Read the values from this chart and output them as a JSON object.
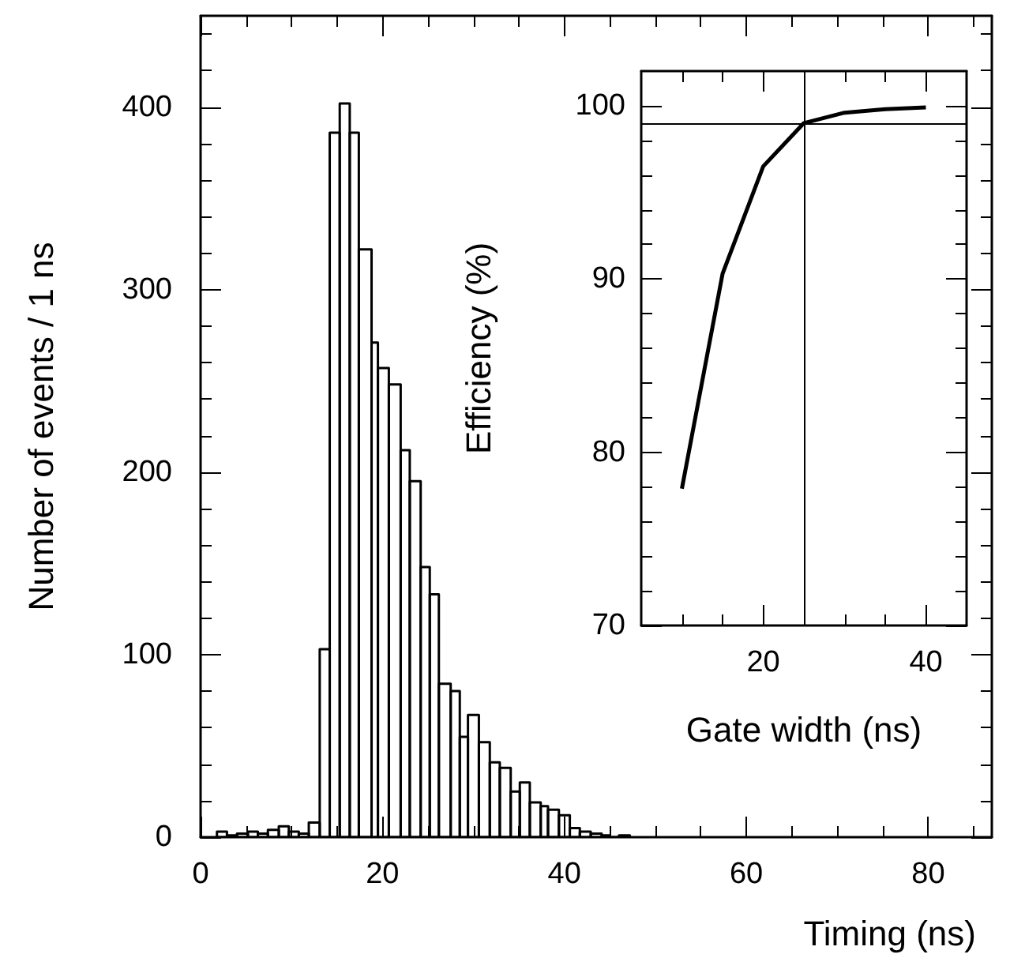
{
  "chart_data": [
    {
      "type": "histogram",
      "xlabel": "Timing (ns)",
      "ylabel": "Number of events / 1 ns",
      "color": "#000000",
      "bins": [
        1.8,
        2.9,
        4.0,
        5.2,
        6.3,
        7.4,
        8.6,
        9.7,
        10.8,
        11.9,
        13.1,
        14.2,
        15.3,
        16.4,
        17.4,
        18.8,
        19.5,
        20.7,
        22.0,
        23.0,
        24.2,
        25.2,
        26.2,
        27.5,
        28.5,
        29.4,
        30.6,
        31.8,
        32.9,
        34.1,
        35.1,
        36.2,
        37.4,
        38.2,
        39.4,
        40.6,
        41.7,
        42.9,
        44.1,
        45.0,
        46.0,
        47.2
      ],
      "values": [
        3,
        1,
        2,
        3,
        2,
        4,
        6,
        3,
        2,
        8,
        103,
        386,
        402,
        386,
        322,
        271,
        257,
        248,
        212,
        195,
        148,
        133,
        84,
        80,
        55,
        67,
        52,
        41,
        38,
        25,
        30,
        19,
        17,
        15,
        12,
        5,
        3,
        2,
        1,
        0,
        1
      ],
      "xlim": [
        0,
        87
      ],
      "xticks": [
        0,
        {
          "value": 5,
          "label": null
        },
        {
          "value": 10,
          "label": null
        },
        {
          "value": 15,
          "label": null
        },
        20,
        {
          "value": 25,
          "label": null
        },
        {
          "value": 30,
          "label": null
        },
        {
          "value": 35,
          "label": null
        },
        40,
        {
          "value": 45,
          "label": null
        },
        {
          "value": 50,
          "label": null
        },
        {
          "value": 55,
          "label": null
        },
        60,
        {
          "value": 65,
          "label": null
        },
        {
          "value": 70,
          "label": null
        },
        {
          "value": 75,
          "label": null
        },
        80,
        {
          "value": 85,
          "label": null
        }
      ],
      "ylim": [
        0,
        450
      ],
      "yticks": [
        0,
        {
          "value": 20,
          "label": null
        },
        {
          "value": 40,
          "label": null
        },
        {
          "value": 60,
          "label": null
        },
        {
          "value": 80,
          "label": null
        },
        100,
        {
          "value": 120,
          "label": null
        },
        {
          "value": 140,
          "label": null
        },
        {
          "value": 160,
          "label": null
        },
        {
          "value": 180,
          "label": null
        },
        200,
        {
          "value": 220,
          "label": null
        },
        {
          "value": 240,
          "label": null
        },
        {
          "value": 260,
          "label": null
        },
        {
          "value": 280,
          "label": null
        },
        300,
        {
          "value": 320,
          "label": null
        },
        {
          "value": 340,
          "label": null
        },
        {
          "value": 360,
          "label": null
        },
        {
          "value": 380,
          "label": null
        },
        400,
        {
          "value": 420,
          "label": null
        },
        {
          "value": 440,
          "label": null
        }
      ]
    },
    {
      "type": "line",
      "xlabel": "Gate width (ns)",
      "ylabel": "Efficiency (%)",
      "marker": "none",
      "series": [
        {
          "color": "#000000",
          "x": [
            10,
            15,
            20,
            25,
            30,
            35,
            40
          ],
          "values": [
            77.9,
            90.3,
            96.5,
            99.0,
            99.6,
            99.8,
            99.9
          ]
        }
      ],
      "xlim": [
        5,
        45
      ],
      "xticks": [
        {
          "value": 10,
          "label": null
        },
        {
          "value": 15,
          "label": null
        },
        20,
        {
          "value": 25,
          "label": null
        },
        {
          "value": 30,
          "label": null
        },
        {
          "value": 35,
          "label": null
        },
        40
      ],
      "ylim": [
        70,
        102
      ],
      "yticks": [
        70,
        {
          "value": 72,
          "label": null
        },
        {
          "value": 74,
          "label": null
        },
        {
          "value": 76,
          "label": null
        },
        {
          "value": 78,
          "label": null
        },
        80,
        {
          "value": 82,
          "label": null
        },
        {
          "value": 84,
          "label": null
        },
        {
          "value": 86,
          "label": null
        },
        {
          "value": 88,
          "label": null
        },
        90,
        {
          "value": 92,
          "label": null
        },
        {
          "value": 94,
          "label": null
        },
        {
          "value": 96,
          "label": null
        },
        {
          "value": 98,
          "label": null
        },
        100
      ],
      "ref_lines": [
        {
          "axis": "x",
          "value": 25,
          "label": null,
          "color": "#000000"
        },
        {
          "axis": "y",
          "value": 99,
          "label": null,
          "color": "#000000"
        }
      ]
    }
  ]
}
